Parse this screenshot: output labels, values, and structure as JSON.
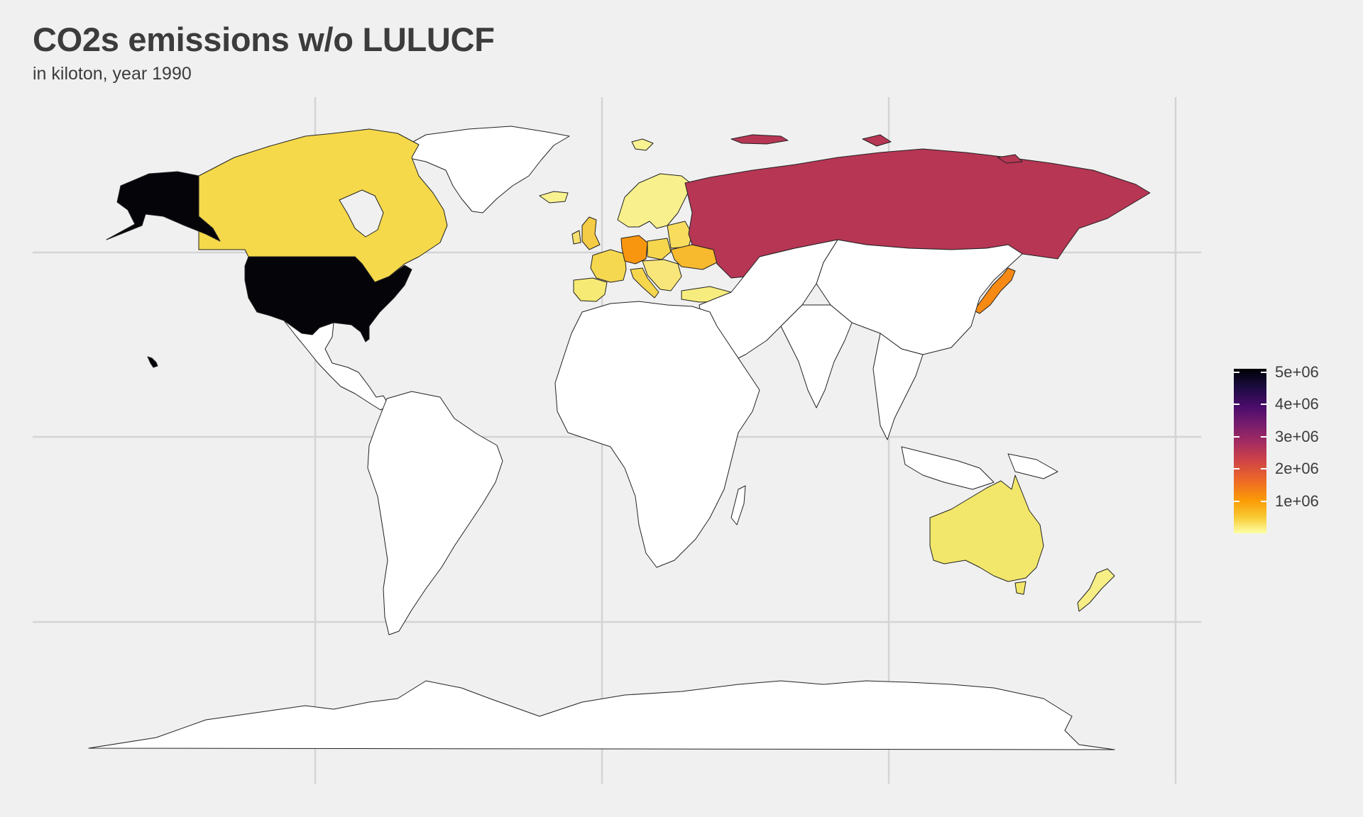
{
  "header": {
    "title": "CO2s emissions w/o LULUCF",
    "subtitle": "in kiloton, year 1990"
  },
  "colors": {
    "background": "#f0f0f0",
    "gridline": "#d2d2d2",
    "no_data": "#ffffff",
    "border": "#222222"
  },
  "chart_data": {
    "type": "choropleth",
    "title": "CO2s emissions w/o LULUCF",
    "subtitle": "in kiloton, year 1990",
    "unit": "kiloton",
    "legend": {
      "position": "right",
      "palette": "inferno (reversed)",
      "ticks": [
        "1e+06",
        "2e+06",
        "3e+06",
        "4e+06",
        "5e+06"
      ],
      "tick_values": [
        1000000,
        2000000,
        3000000,
        4000000,
        5000000
      ],
      "range": [
        0,
        5100000
      ]
    },
    "regions": [
      {
        "name": "United States",
        "value": 5100000,
        "color": "#050409"
      },
      {
        "name": "Russia",
        "value": 2550000,
        "color": "#b63654"
      },
      {
        "name": "Japan",
        "value": 1150000,
        "color": "#f68a15"
      },
      {
        "name": "Germany",
        "value": 1050000,
        "color": "#f8960f"
      },
      {
        "name": "Canada",
        "value": 460000,
        "color": "#f5d94b"
      },
      {
        "name": "United Kingdom",
        "value": 600000,
        "color": "#f5cc45"
      },
      {
        "name": "Ukraine",
        "value": 700000,
        "color": "#f7b92e"
      },
      {
        "name": "Poland",
        "value": 380000,
        "color": "#f6d64d"
      },
      {
        "name": "Italy",
        "value": 430000,
        "color": "#f6d64d"
      },
      {
        "name": "France",
        "value": 400000,
        "color": "#f6d850"
      },
      {
        "name": "Australia",
        "value": 280000,
        "color": "#f2e76b"
      },
      {
        "name": "Spain",
        "value": 230000,
        "color": "#f6ea75"
      },
      {
        "name": "Turkey",
        "value": 150000,
        "color": "#f7ec7e"
      },
      {
        "name": "Scandinavia",
        "value": 60000,
        "color": "#f8f08c"
      },
      {
        "name": "New Zealand",
        "value": 25000,
        "color": "#f7ef86"
      },
      {
        "name": "Iceland",
        "value": 2000,
        "color": "#f8f291"
      }
    ]
  }
}
